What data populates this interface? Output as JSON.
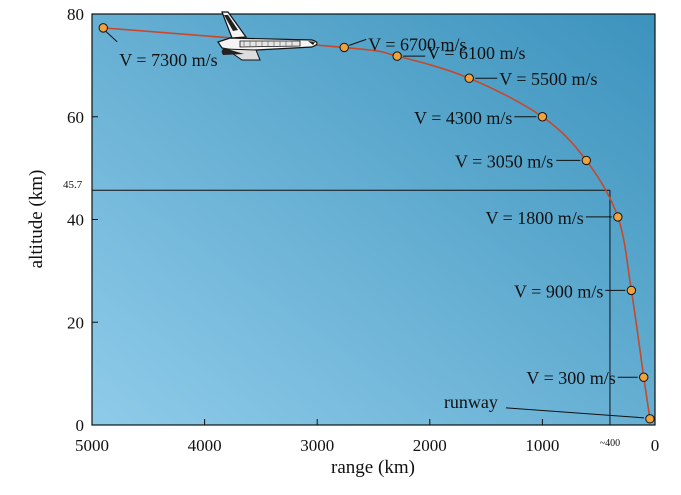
{
  "chart_data": {
    "type": "scatter",
    "xlabel": "range (km)",
    "ylabel": "altitude (km)",
    "xlim": [
      5000,
      0
    ],
    "ylim": [
      0,
      80
    ],
    "x_ticks": [
      5000,
      4000,
      3000,
      2000,
      1000,
      0
    ],
    "y_ticks": [
      0,
      20,
      40,
      60,
      80
    ],
    "grid": false,
    "background_gradient": [
      "#8fcbe9",
      "#3c93bd"
    ],
    "curve_color": "#c8482b",
    "marker_color": "#f0a23c",
    "points": [
      {
        "x": 4900,
        "y": 77.3,
        "label": "V = 7300 m/s"
      },
      {
        "x": 2760,
        "y": 73.5,
        "label": "V = 6700 m/s"
      },
      {
        "x": 2290,
        "y": 71.8,
        "label": "V = 6100 m/s"
      },
      {
        "x": 1650,
        "y": 67.5,
        "label": "V = 5500 m/s"
      },
      {
        "x": 1000,
        "y": 60.0,
        "label": "V = 4300 m/s"
      },
      {
        "x": 610,
        "y": 51.5,
        "label": "V = 3050 m/s"
      },
      {
        "x": 330,
        "y": 40.5,
        "label": "V = 1800 m/s"
      },
      {
        "x": 210,
        "y": 26.2,
        "label": "V = 900 m/s"
      },
      {
        "x": 100,
        "y": 9.3,
        "label": "V = 300 m/s"
      },
      {
        "x": 45,
        "y": 1.2,
        "label": "runway"
      }
    ],
    "reference_line": {
      "x": 400,
      "y": 45.7,
      "x_label": "~400",
      "y_label": "45.7"
    },
    "annotation_icon": "space-shuttle-icon"
  }
}
